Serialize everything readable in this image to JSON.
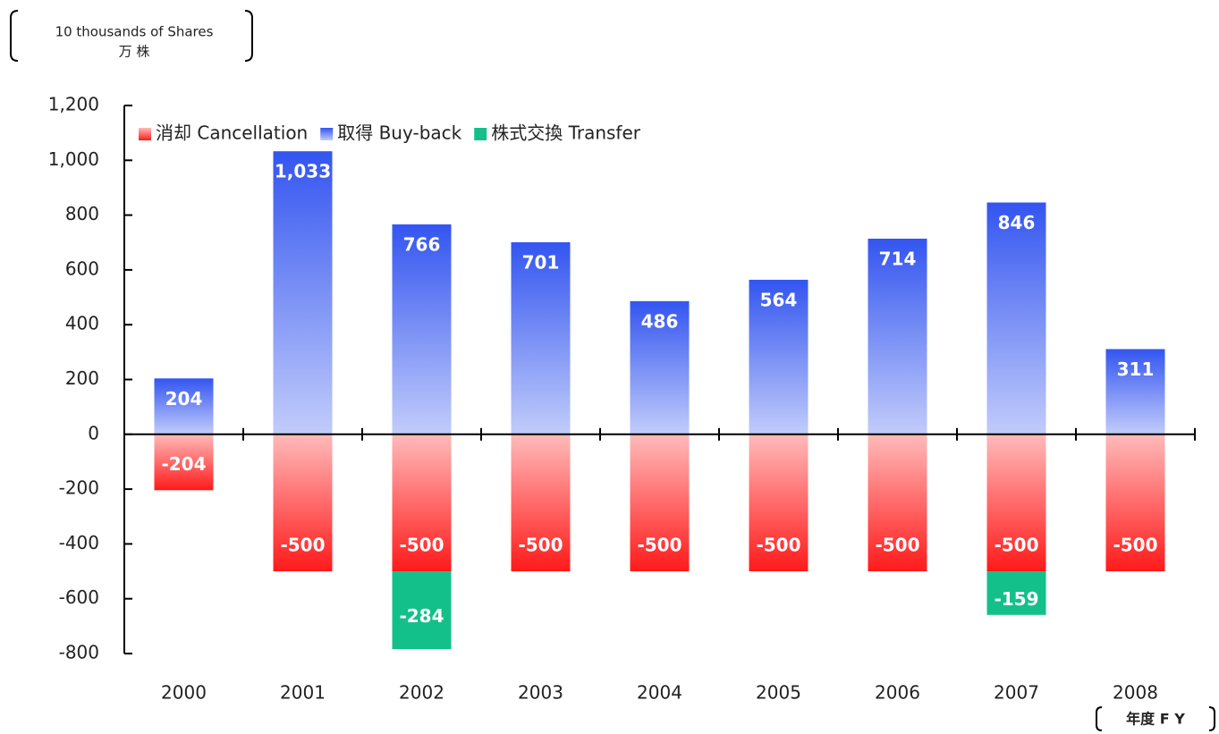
{
  "chart_data": {
    "type": "bar",
    "stacked": true,
    "y_unit": [
      "10 thousands of Shares",
      "万 株"
    ],
    "x_label": "年度 F Y",
    "categories": [
      "2000",
      "2001",
      "2002",
      "2003",
      "2004",
      "2005",
      "2006",
      "2007",
      "2008"
    ],
    "series": [
      {
        "name": "消却 Cancellation",
        "color": "#ff1a1a",
        "gradient": true,
        "values": [
          -204,
          -500,
          -500,
          -500,
          -500,
          -500,
          -500,
          -500,
          -500
        ]
      },
      {
        "name": "取得 Buy-back",
        "color": "#3355f0",
        "gradient": true,
        "values": [
          204,
          1033,
          766,
          701,
          486,
          564,
          714,
          846,
          311
        ],
        "value_labels": [
          "204",
          "1,033",
          "766",
          "701",
          "486",
          "564",
          "714",
          "846",
          "311"
        ]
      },
      {
        "name": "株式交換 Transfer",
        "color": "#13c08a",
        "gradient": false,
        "values": [
          null,
          null,
          -284,
          null,
          null,
          null,
          null,
          -159,
          null
        ]
      }
    ],
    "ylim": [
      -800,
      1200
    ],
    "yticks": [
      -800,
      -600,
      -400,
      -200,
      0,
      200,
      400,
      600,
      800,
      {
        "value": 1000,
        "label": "1,000"
      },
      {
        "value": 1200,
        "label": "1,200"
      }
    ],
    "grid": false,
    "legend": "top-left"
  }
}
